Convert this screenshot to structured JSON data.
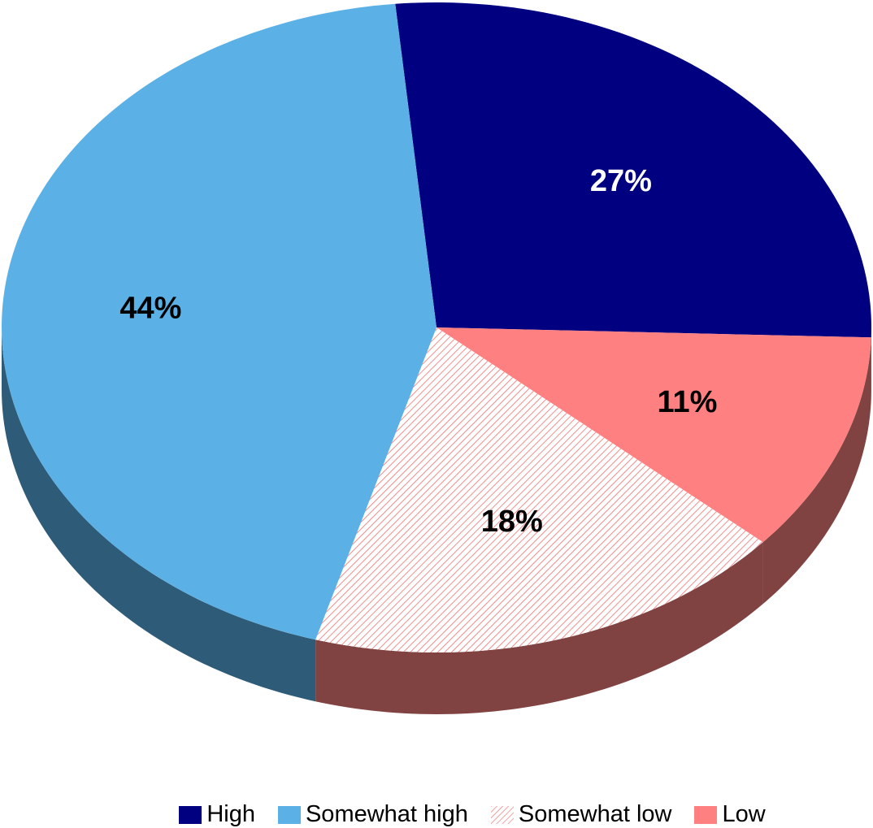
{
  "chart_data": {
    "type": "pie",
    "style": "3d",
    "title": "",
    "categories": [
      "High",
      "Somewhat high",
      "Somewhat low",
      "Low"
    ],
    "values": [
      27,
      44,
      18,
      11
    ],
    "labels": [
      "27%",
      "44%",
      "18%",
      "11%"
    ],
    "colors": [
      "#000080",
      "#5BB1E6",
      "hatch-red",
      "#FF8080"
    ],
    "label_colors": [
      "#ffffff",
      "#000000",
      "#000000",
      "#000000"
    ],
    "legend_position": "bottom"
  },
  "legend": {
    "items": [
      {
        "label": "High",
        "color": "#000080"
      },
      {
        "label": "Somewhat high",
        "color": "#5BB1E6"
      },
      {
        "label": "Somewhat low",
        "color": "hatch-red"
      },
      {
        "label": "Low",
        "color": "#FF8080"
      }
    ]
  }
}
